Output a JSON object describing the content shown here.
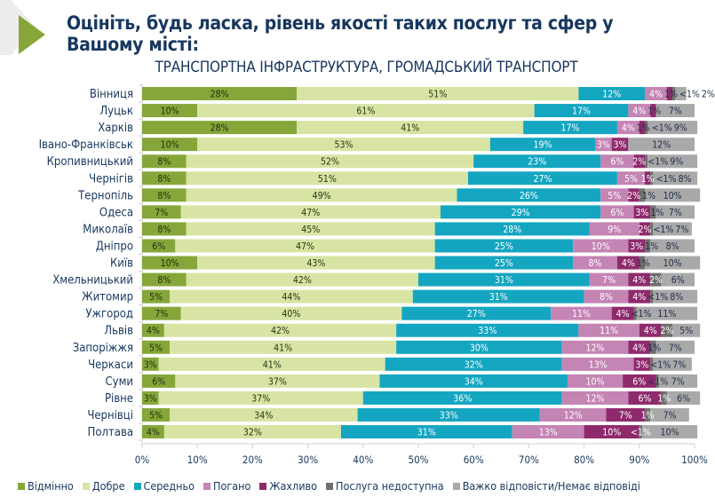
{
  "page": {
    "title": "Оцініть, будь ласка, рівень якості таких послуг та сфер у Вашому місті:",
    "subtitle": "ТРАНСПОРТНА ІНФРАСТРУКТУРА, ГРОМАДСЬКИЙ ТРАНСПОРТ",
    "decor_icon": "play-triangle-icon"
  },
  "chart_data": {
    "type": "bar",
    "orientation": "horizontal",
    "stacked": true,
    "percent_stacked": true,
    "title": "ТРАНСПОРТНА ІНФРАСТРУКТУРА, ГРОМАДСЬКИЙ ТРАНСПОРТ",
    "xlabel": "",
    "ylabel": "",
    "xlim": [
      0,
      100
    ],
    "x_ticks": [
      "0%",
      "10%",
      "20%",
      "30%",
      "40%",
      "50%",
      "60%",
      "70%",
      "80%",
      "90%",
      "100%"
    ],
    "legend_position": "bottom",
    "categories": [
      "Вінниця",
      "Луцьк",
      "Харків",
      "Івано-Франківськ",
      "Кропивницький",
      "Чернігів",
      "Тернопіль",
      "Одеса",
      "Миколаїв",
      "Дніпро",
      "Київ",
      "Хмельницький",
      "Житомир",
      "Ужгород",
      "Львів",
      "Запоріжжя",
      "Черкаси",
      "Суми",
      "Рівне",
      "Чернівці",
      "Полтава"
    ],
    "series": [
      {
        "name": "Відмінно",
        "color": "#86a63a",
        "label_color": "#1f2d0a",
        "values": [
          28,
          10,
          28,
          10,
          8,
          8,
          8,
          7,
          8,
          6,
          10,
          8,
          5,
          7,
          4,
          5,
          3,
          6,
          3,
          5,
          4
        ],
        "labels": [
          "28%",
          "10%",
          "28%",
          "10%",
          "8%",
          "8%",
          "8%",
          "7%",
          "8%",
          "6%",
          "10%",
          "8%",
          "5%",
          "7%",
          "4%",
          "5%",
          "3%",
          "6%",
          "3%",
          "5%",
          "4%"
        ]
      },
      {
        "name": "Добре",
        "color": "#d7e4a3",
        "label_color": "#2a3414",
        "values": [
          51,
          61,
          41,
          53,
          52,
          51,
          49,
          47,
          45,
          47,
          43,
          42,
          44,
          40,
          42,
          41,
          41,
          37,
          37,
          34,
          32
        ],
        "labels": [
          "51%",
          "61%",
          "41%",
          "53%",
          "52%",
          "51%",
          "49%",
          "47%",
          "45%",
          "47%",
          "43%",
          "42%",
          "44%",
          "40%",
          "42%",
          "41%",
          "41%",
          "37%",
          "37%",
          "34%",
          "32%"
        ]
      },
      {
        "name": "Середньо",
        "color": "#14a6c1",
        "label_color": "#ffffff",
        "values": [
          12,
          17,
          17,
          19,
          23,
          27,
          26,
          29,
          28,
          25,
          25,
          31,
          31,
          27,
          33,
          30,
          32,
          34,
          36,
          33,
          31
        ],
        "labels": [
          "12%",
          "17%",
          "17%",
          "19%",
          "23%",
          "27%",
          "26%",
          "29%",
          "28%",
          "25%",
          "25%",
          "31%",
          "31%",
          "27%",
          "33%",
          "30%",
          "32%",
          "34%",
          "36%",
          "33%",
          "31%"
        ]
      },
      {
        "name": "Погано",
        "color": "#c484b4",
        "label_color": "#ffffff",
        "values": [
          4,
          4,
          4,
          3,
          6,
          5,
          5,
          6,
          9,
          10,
          8,
          7,
          8,
          11,
          11,
          12,
          13,
          10,
          12,
          12,
          13
        ],
        "labels": [
          "4%",
          "4%",
          "4%",
          "3%",
          "6%",
          "5%",
          "5%",
          "6%",
          "9%",
          "10%",
          "8%",
          "7%",
          "8%",
          "11%",
          "11%",
          "12%",
          "13%",
          "10%",
          "12%",
          "12%",
          "13%"
        ]
      },
      {
        "name": "Жахливо",
        "color": "#8e2a6c",
        "label_color": "#ffffff",
        "values": [
          1,
          1,
          1,
          3,
          2,
          1,
          2,
          3,
          2,
          3,
          4,
          4,
          4,
          4,
          4,
          4,
          3,
          6,
          6,
          7,
          10
        ],
        "labels": [
          "1%",
          "1%",
          "1%",
          "3%",
          "2%",
          "1%",
          "2%",
          "3%",
          "2%",
          "3%",
          "4%",
          "4%",
          "4%",
          "4%",
          "4%",
          "4%",
          "3%",
          "6%",
          "6%",
          "7%",
          "10%"
        ]
      },
      {
        "name": "Послуга недоступна",
        "color": "#6f6f6f",
        "label_color": "#ffffff",
        "values": [
          0.5,
          0,
          0.5,
          0,
          0.5,
          0.5,
          1,
          1,
          0.5,
          1,
          1,
          2,
          0.5,
          0.5,
          2,
          1,
          0.5,
          0.5,
          1,
          1,
          0.5
        ],
        "labels": [
          "<1%",
          "",
          "<1%",
          "",
          "<1%",
          "<1%",
          "1%",
          "1%",
          "<1%",
          "1%",
          "1%",
          "2%",
          "<1%",
          "<1%",
          "2%",
          "1%",
          "<1%",
          "<1%",
          "1%",
          "1%",
          "<1%"
        ]
      },
      {
        "name": "Важко відповісти/Немає відповіді",
        "color": "#a9a9a9",
        "label_color": "#1f2d4a",
        "values": [
          2,
          7,
          9,
          12,
          9,
          8,
          10,
          7,
          7,
          8,
          10,
          6,
          8,
          11,
          5,
          7,
          7,
          7,
          6,
          7,
          10
        ],
        "labels": [
          "2%",
          "7%",
          "9%",
          "12%",
          "9%",
          "8%",
          "10%",
          "7%",
          "7%",
          "8%",
          "10%",
          "6%",
          "8%",
          "11%",
          "5%",
          "7%",
          "7%",
          "7%",
          "6%",
          "7%",
          "10%"
        ]
      }
    ]
  }
}
